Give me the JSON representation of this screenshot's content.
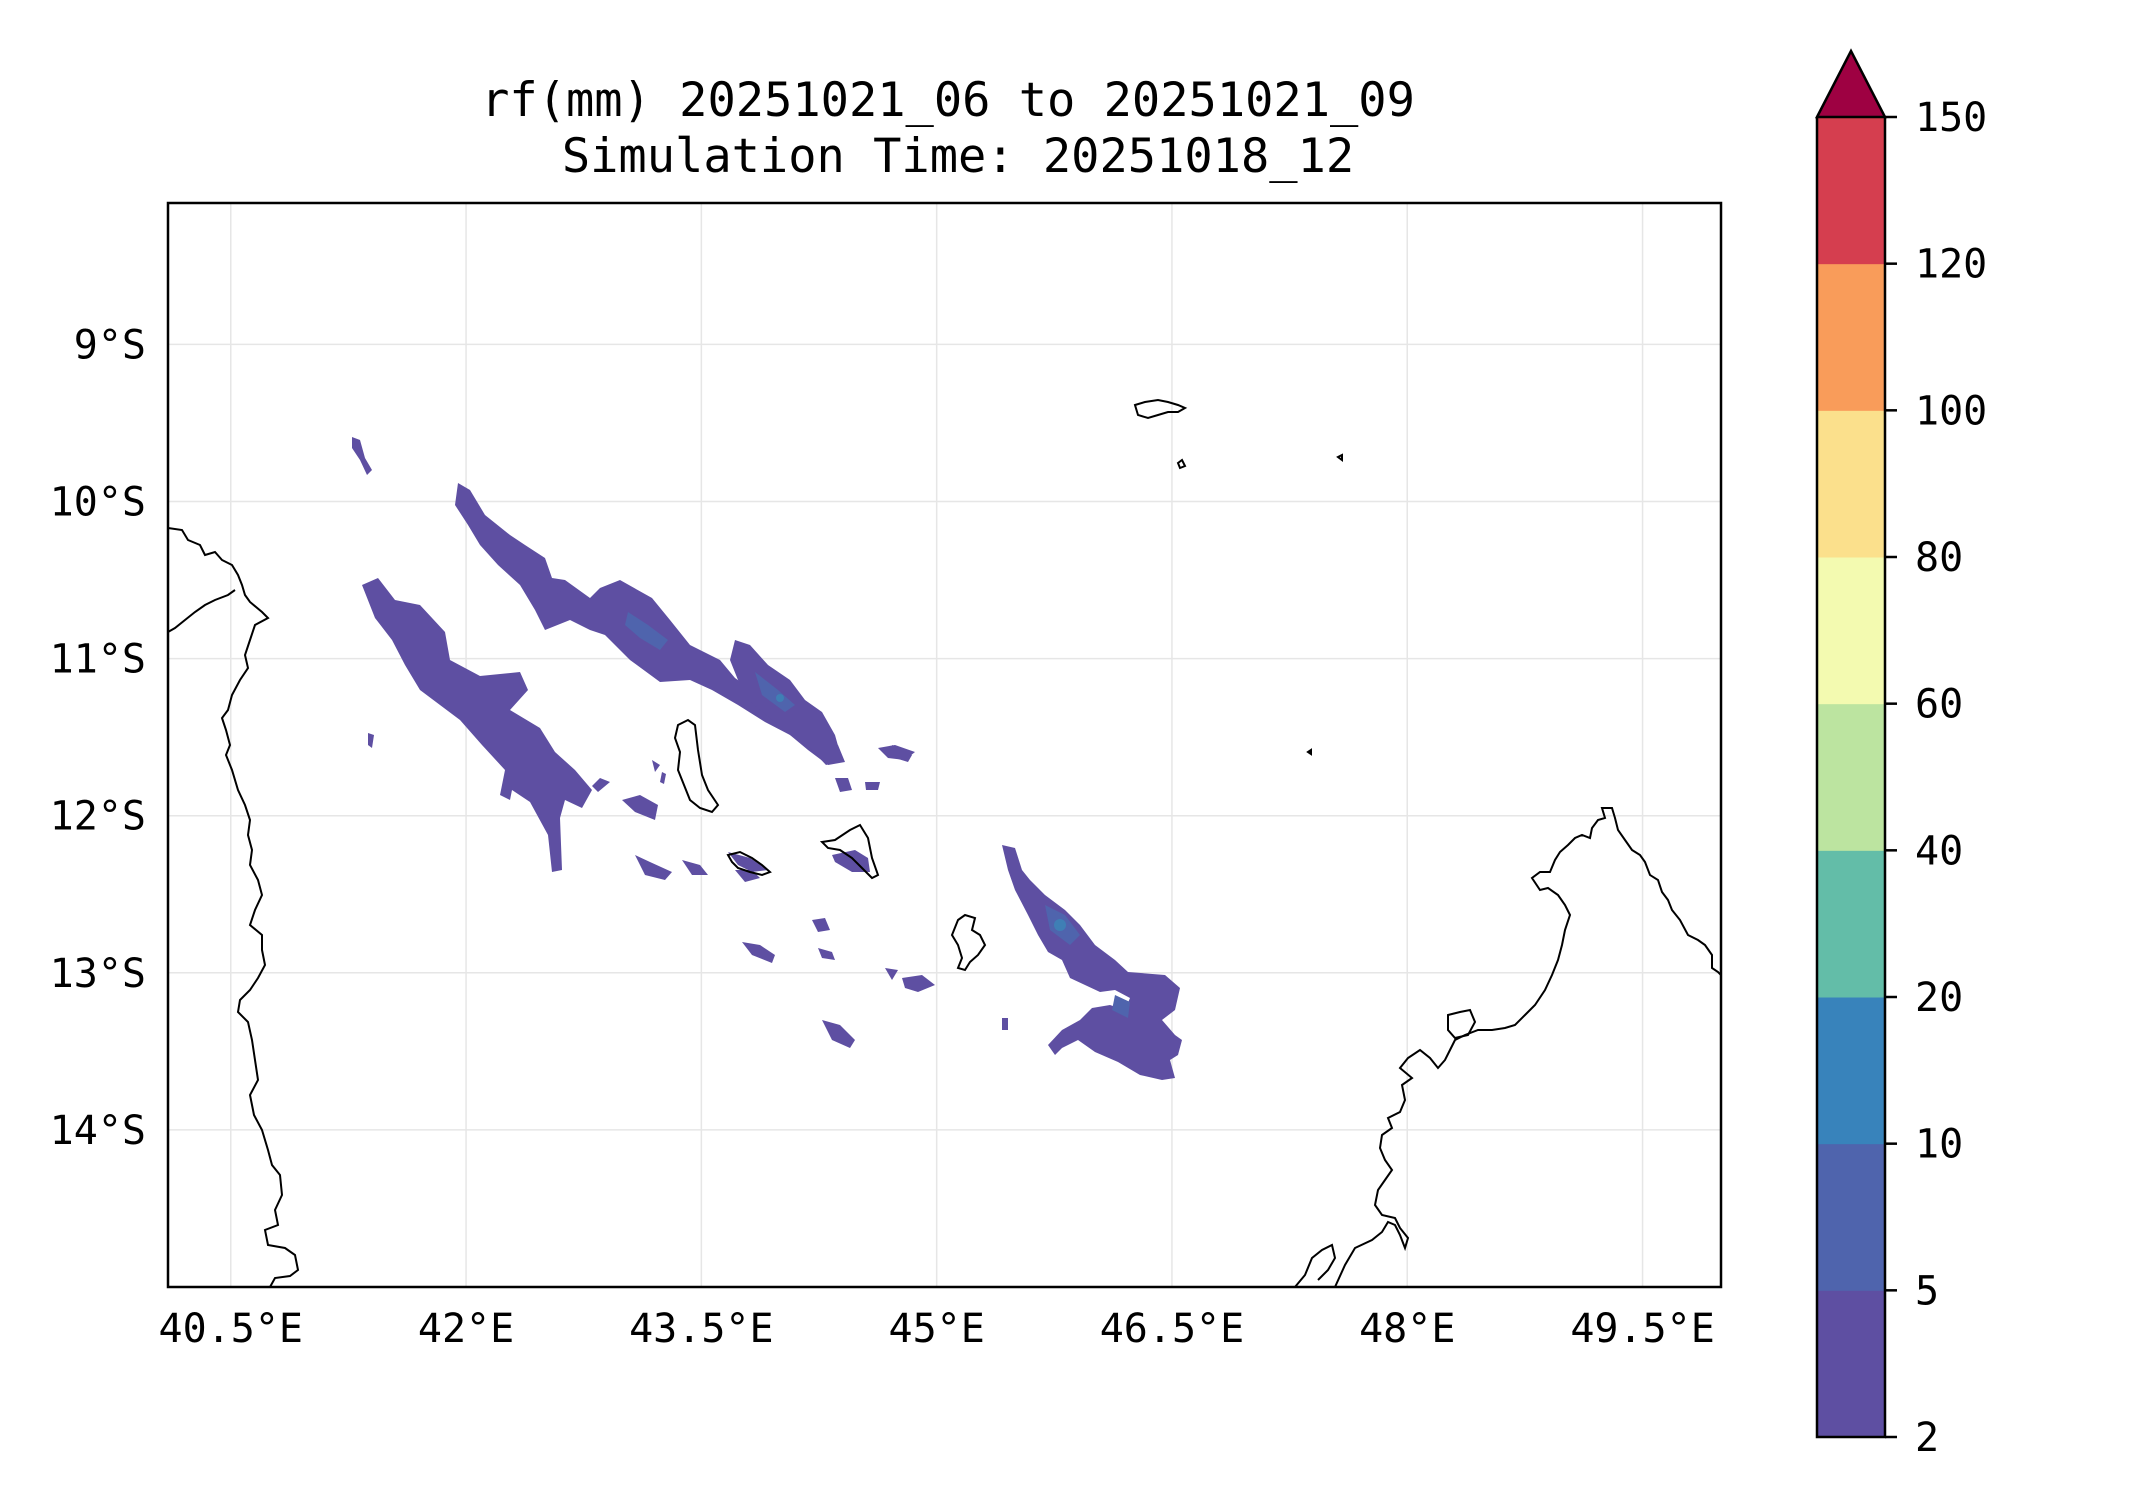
{
  "title": {
    "line1": "rf(mm) 20251021_06 to 20251021_09",
    "line2": "Simulation Time: 20251018_12"
  },
  "map": {
    "lon_range": [
      40.1,
      50.0
    ],
    "lat_range": [
      -15.0,
      -8.1
    ],
    "lon_ticks": [
      {
        "value": 40.5,
        "label": "40.5°E"
      },
      {
        "value": 42.0,
        "label": "42°E"
      },
      {
        "value": 43.5,
        "label": "43.5°E"
      },
      {
        "value": 45.0,
        "label": "45°E"
      },
      {
        "value": 46.5,
        "label": "46.5°E"
      },
      {
        "value": 48.0,
        "label": "48°E"
      },
      {
        "value": 49.5,
        "label": "49.5°E"
      }
    ],
    "lat_ticks": [
      {
        "value": -9,
        "label": "9°S"
      },
      {
        "value": -10,
        "label": "10°S"
      },
      {
        "value": -11,
        "label": "11°S"
      },
      {
        "value": -12,
        "label": "12°S"
      },
      {
        "value": -13,
        "label": "13°S"
      },
      {
        "value": -14,
        "label": "14°S"
      }
    ],
    "gridlines": true,
    "coastline_color": "#000000",
    "grid_color": "#e6e6e6"
  },
  "colorbar": {
    "levels": [
      2,
      5,
      10,
      20,
      40,
      60,
      80,
      100,
      120,
      150
    ],
    "labels": [
      "2",
      "5",
      "10",
      "20",
      "40",
      "60",
      "80",
      "100",
      "120",
      "150"
    ],
    "colors": [
      "#5e4fa2",
      "#4f64ad",
      "#3883bb",
      "#63bda8",
      "#bce4a0",
      "#f3fab0",
      "#fbe08c",
      "#f99c5a",
      "#d53e4f"
    ],
    "extend_color": "#9e0142",
    "extend": "max"
  },
  "rain_color_low": "#5e4fa2",
  "rain_color_mid": "#4f64ad",
  "rain_color_peak": "#3f7fb5"
}
